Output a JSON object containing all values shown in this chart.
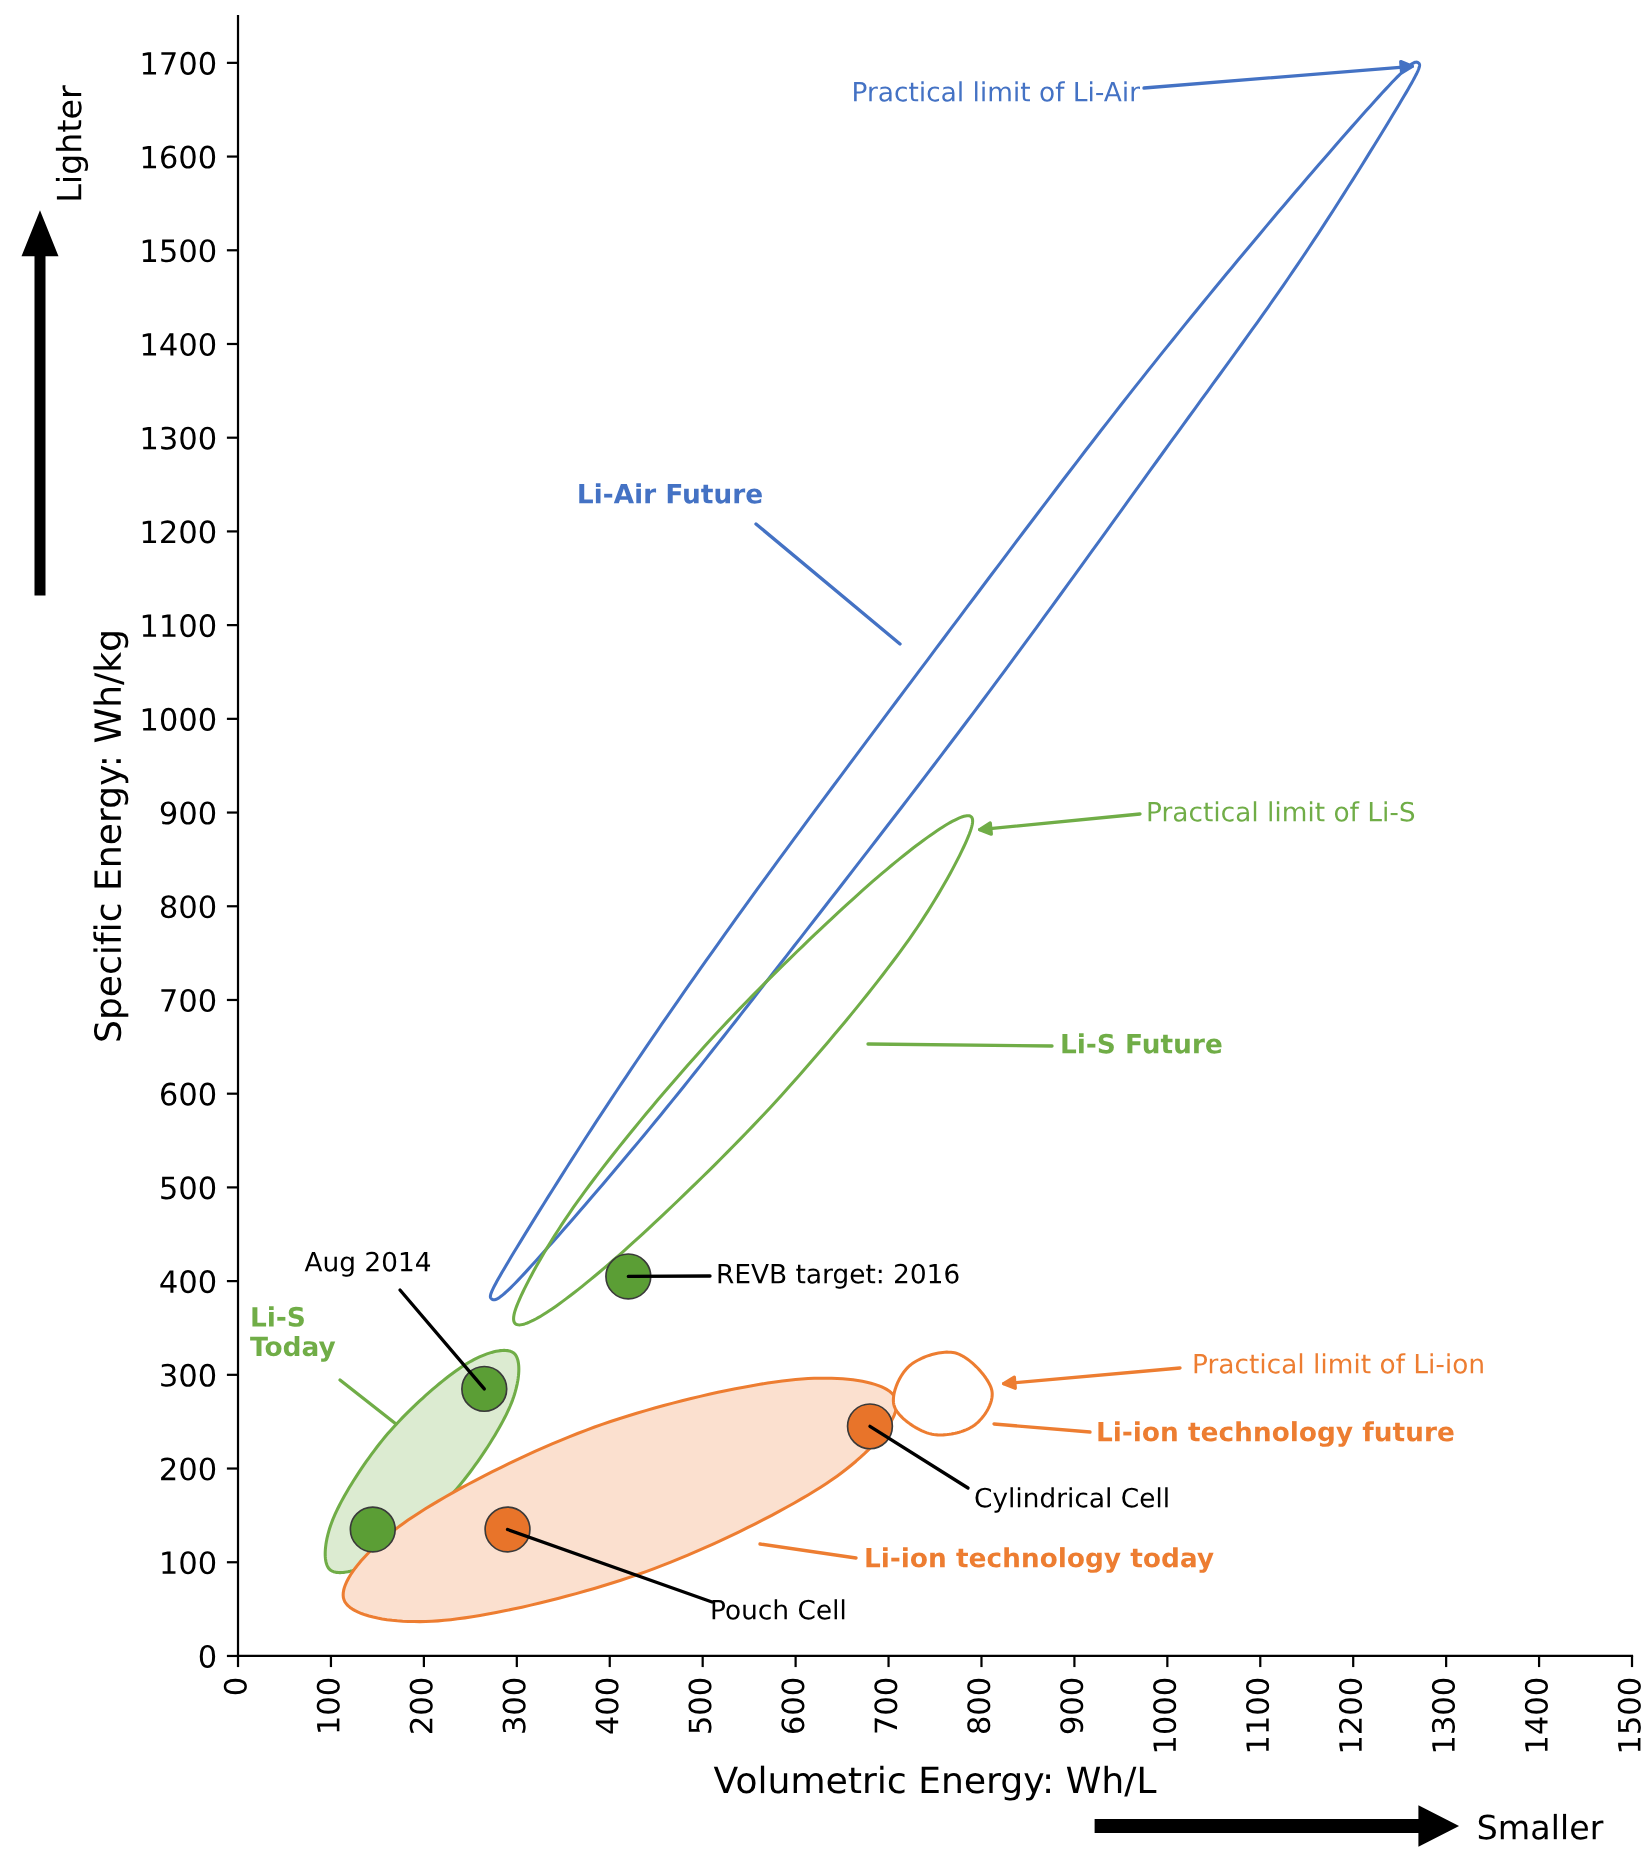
{
  "chart_data": {
    "type": "scatter",
    "xlabel": "Volumetric Energy: Wh/L",
    "ylabel": "Specific Energy: Wh/kg",
    "xlim": [
      0,
      1500
    ],
    "xticks": [
      0,
      100,
      200,
      300,
      400,
      500,
      600,
      700,
      800,
      900,
      1000,
      1100,
      1200,
      1300,
      1400,
      1500
    ],
    "ylim": [
      0,
      1750
    ],
    "yticks": [
      0,
      100,
      200,
      300,
      400,
      500,
      600,
      700,
      800,
      900,
      1000,
      1100,
      1200,
      1300,
      1400,
      1500,
      1600,
      1700
    ],
    "marker": "circle",
    "series": [
      {
        "color": "#5b9e35",
        "x": [
          145,
          265,
          420
        ],
        "values": [
          135,
          285,
          405
        ]
      },
      {
        "color": "#e8742a",
        "x": [
          290,
          680
        ],
        "values": [
          135,
          245
        ]
      }
    ],
    "annotations": [
      "Practical limit of Li-Air",
      "Li-Air Future",
      "Practical limit of Li-S",
      "Li-S Future",
      {
        "text": "Aug 2014",
        "x": 265,
        "y": 285
      },
      "Li-S\nToday",
      {
        "text": "REVB target: 2016",
        "x": 420,
        "y": 405
      },
      "Practical limit of Li-ion",
      "Li-ion technology future",
      {
        "text": "Cylindrical Cell",
        "x": 680,
        "y": 245
      },
      "Li-ion technology today",
      {
        "text": "Pouch Cell",
        "x": 290,
        "y": 135
      },
      "Lighter",
      "Smaller"
    ]
  }
}
